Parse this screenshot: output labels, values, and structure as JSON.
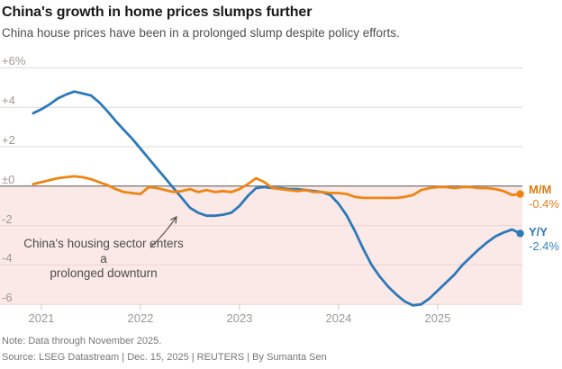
{
  "header": {
    "title": "China's growth in home prices slumps further",
    "subtitle": "China house prices have been in a prolonged slump despite policy efforts."
  },
  "chart_data": {
    "type": "line",
    "title": "China's growth in home prices slumps further",
    "x_unit": "month",
    "x_start": "2020-12",
    "x_end": "2025-11",
    "ylim": [
      -6.5,
      6.5
    ],
    "grid": true,
    "y_ticks": [
      {
        "value": 6,
        "label": "+6%"
      },
      {
        "value": 4,
        "label": "+4"
      },
      {
        "value": 2,
        "label": "+2"
      },
      {
        "value": 0,
        "label": "±0"
      },
      {
        "value": -2,
        "label": "-2"
      },
      {
        "value": -4,
        "label": "-4"
      },
      {
        "value": -6,
        "label": "-6"
      }
    ],
    "x_ticks": [
      {
        "label": "2021",
        "month_index": 1
      },
      {
        "label": "2022",
        "month_index": 13
      },
      {
        "label": "2023",
        "month_index": 25
      },
      {
        "label": "2024",
        "month_index": 37
      },
      {
        "label": "2025",
        "month_index": 49
      }
    ],
    "shaded_region": {
      "from": 0,
      "to": -6,
      "color": "#fbe9e7"
    },
    "series": [
      {
        "name": "Y/Y",
        "end_label": "Y/Y",
        "end_value": "-2.4%",
        "color": "#2d79b8",
        "values": [
          3.7,
          3.9,
          4.15,
          4.45,
          4.65,
          4.8,
          4.7,
          4.6,
          4.25,
          3.8,
          3.3,
          2.85,
          2.4,
          1.9,
          1.4,
          0.9,
          0.4,
          -0.1,
          -0.6,
          -1.1,
          -1.35,
          -1.5,
          -1.5,
          -1.45,
          -1.35,
          -1.0,
          -0.5,
          -0.1,
          -0.05,
          -0.1,
          -0.1,
          -0.15,
          -0.15,
          -0.2,
          -0.25,
          -0.3,
          -0.45,
          -0.9,
          -1.5,
          -2.3,
          -3.2,
          -4.0,
          -4.6,
          -5.1,
          -5.5,
          -5.85,
          -6.05,
          -6.0,
          -5.7,
          -5.3,
          -4.9,
          -4.5,
          -4.0,
          -3.6,
          -3.2,
          -2.85,
          -2.55,
          -2.35,
          -2.2,
          -2.4
        ]
      },
      {
        "name": "M/M",
        "end_label": "M/M",
        "end_value": "-0.4%",
        "color": "#ee8512",
        "values": [
          0.1,
          0.2,
          0.3,
          0.4,
          0.45,
          0.5,
          0.45,
          0.35,
          0.2,
          0.05,
          -0.15,
          -0.3,
          -0.35,
          -0.4,
          -0.05,
          -0.1,
          -0.2,
          -0.3,
          -0.25,
          -0.15,
          -0.3,
          -0.2,
          -0.3,
          -0.25,
          -0.3,
          -0.15,
          0.1,
          0.4,
          0.2,
          -0.1,
          -0.15,
          -0.2,
          -0.25,
          -0.2,
          -0.3,
          -0.3,
          -0.35,
          -0.35,
          -0.4,
          -0.55,
          -0.6,
          -0.6,
          -0.6,
          -0.6,
          -0.6,
          -0.55,
          -0.45,
          -0.2,
          -0.1,
          -0.05,
          -0.05,
          -0.1,
          -0.05,
          -0.05,
          -0.1,
          -0.1,
          -0.15,
          -0.25,
          -0.45,
          -0.4
        ]
      }
    ],
    "annotation": {
      "line1": "China's housing sector enters a",
      "line2": "prolonged downturn"
    },
    "legend_position": "right-of-line-ends"
  },
  "footer": {
    "note": "Note: Data through November 2025.",
    "source": "Source: LSEG Datastream | Dec. 15, 2025 | REUTERS | By Sumanta Sen"
  }
}
